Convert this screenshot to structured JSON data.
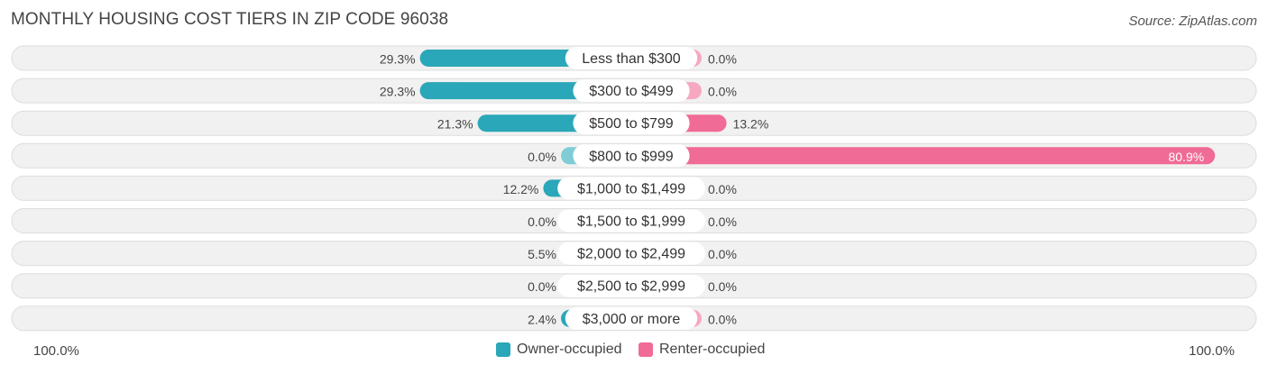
{
  "header": {
    "title": "MONTHLY HOUSING COST TIERS IN ZIP CODE 96038",
    "source": "Source: ZipAtlas.com"
  },
  "chart_data": {
    "type": "bar",
    "orientation": "horizontal-diverging",
    "categories": [
      "Less than $300",
      "$300 to $499",
      "$500 to $799",
      "$800 to $999",
      "$1,000 to $1,499",
      "$1,500 to $1,999",
      "$2,000 to $2,499",
      "$2,500 to $2,999",
      "$3,000 or more"
    ],
    "series": [
      {
        "name": "Owner-occupied",
        "color": "#2aa7b8",
        "light_color": "#7fccd6",
        "values": [
          29.3,
          29.3,
          21.3,
          0.0,
          12.2,
          0.0,
          5.5,
          0.0,
          2.4
        ],
        "labels": [
          "29.3%",
          "29.3%",
          "21.3%",
          "0.0%",
          "12.2%",
          "0.0%",
          "5.5%",
          "0.0%",
          "2.4%"
        ]
      },
      {
        "name": "Renter-occupied",
        "color": "#f06b95",
        "light_color": "#f7a8c1",
        "values": [
          0.0,
          0.0,
          13.2,
          80.9,
          0.0,
          0.0,
          0.0,
          0.0,
          0.0
        ],
        "labels": [
          "0.0%",
          "0.0%",
          "13.2%",
          "80.9%",
          "0.0%",
          "0.0%",
          "0.0%",
          "0.0%",
          "0.0%"
        ]
      }
    ],
    "xlim": [
      -100,
      100
    ],
    "axis_left_label": "100.0%",
    "axis_right_label": "100.0%",
    "legend_position": "bottom-center"
  }
}
